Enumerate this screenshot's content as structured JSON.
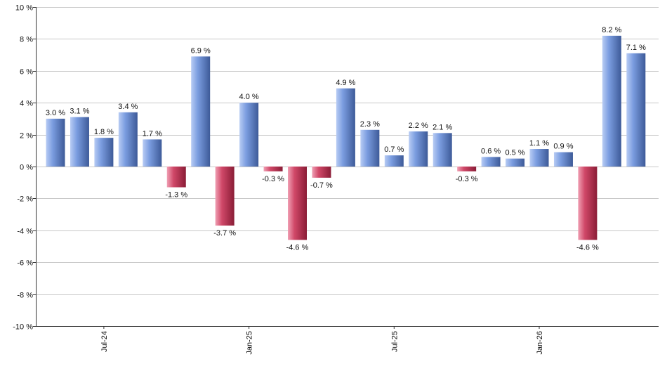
{
  "colors": {
    "positive_light": "#b8ccf4",
    "positive_mid": "#7b9de0",
    "positive_dark": "#3d5a98",
    "negative_light": "#f0a0b4",
    "negative_mid": "#d04868",
    "negative_dark": "#8a1c36",
    "grid": "#c8c8c8",
    "axis": "#333333"
  },
  "chart_data": {
    "type": "bar",
    "title": "",
    "xlabel": "",
    "ylabel": "",
    "ylim": [
      -10,
      10
    ],
    "yticks": [
      -10,
      -8,
      -6,
      -4,
      -2,
      0,
      2,
      4,
      6,
      8,
      10
    ],
    "ytick_suffix": " %",
    "grid": true,
    "legend": "none",
    "x_tick_labels": [
      {
        "label": "Jul-24",
        "index": 2
      },
      {
        "label": "Jan-25",
        "index": 8
      },
      {
        "label": "Jul-25",
        "index": 14
      },
      {
        "label": "Jan-26",
        "index": 20
      }
    ],
    "values": [
      3.0,
      3.1,
      1.8,
      3.4,
      1.7,
      -1.3,
      6.9,
      -3.7,
      4.0,
      -0.3,
      -4.6,
      -0.7,
      4.9,
      2.3,
      0.7,
      2.2,
      2.1,
      -0.3,
      0.6,
      0.5,
      1.1,
      0.9,
      -4.6,
      8.2,
      7.1
    ],
    "data_labels": [
      "3.0 %",
      "3.1 %",
      "1.8 %",
      "3.4 %",
      "1.7 %",
      "-1.3 %",
      "6.9 %",
      "-3.7 %",
      "4.0 %",
      "-0.3 %",
      "-4.6 %",
      "-0.7 %",
      "4.9 %",
      "2.3 %",
      "0.7 %",
      "2.2 %",
      "2.1 %",
      "-0.3 %",
      "0.6 %",
      "0.5 %",
      "1.1 %",
      "0.9 %",
      "-4.6 %",
      "8.2 %",
      "7.1 %"
    ]
  }
}
